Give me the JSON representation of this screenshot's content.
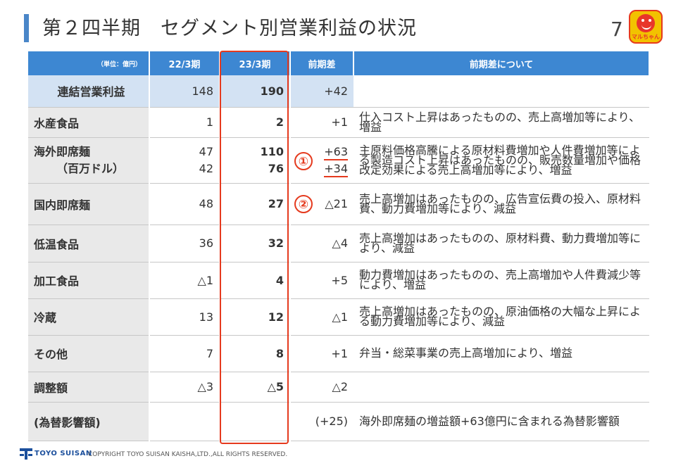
{
  "header": {
    "title": "第２四半期　セグメント別営業利益の状況",
    "page_number": "7",
    "logo_text": "マルちゃん"
  },
  "table": {
    "unit_label": "（単位：億円）",
    "col_prev": "22/3期",
    "col_cur": "23/3期",
    "col_diff": "前期差",
    "col_note": "前期差について",
    "rows": [
      {
        "label": "連結営業利益",
        "prev": "148",
        "cur": "190",
        "diff": "+42",
        "note": ""
      },
      {
        "label": "水産食品",
        "prev": "1",
        "cur": "2",
        "diff": "+1",
        "note": "仕入コスト上昇はあったものの、売上高増加等により、増益"
      },
      {
        "label": "海外即席麺",
        "label2": "（百万ドル）",
        "prev": "47",
        "prev2": "42",
        "cur": "110",
        "cur2": "76",
        "diff": "+63",
        "diff2": "+34",
        "note": "主原料価格高騰による原材料費増加や人件費増加等による製造コスト上昇はあったものの、販売数量増加や価格改定効果による売上高増加等により、増益"
      },
      {
        "label": "国内即席麺",
        "prev": "48",
        "cur": "27",
        "diff": "△21",
        "note": "売上高増加はあったものの、広告宣伝費の投入、原材料費、動力費増加等により、減益"
      },
      {
        "label": "低温食品",
        "prev": "36",
        "cur": "32",
        "diff": "△4",
        "note": "売上高増加はあったものの、原材料費、動力費増加等により、減益"
      },
      {
        "label": "加工食品",
        "prev": "△1",
        "cur": "4",
        "diff": "+5",
        "note": "動力費増加はあったものの、売上高増加や人件費減少等により、増益"
      },
      {
        "label": "冷蔵",
        "prev": "13",
        "cur": "12",
        "diff": "△1",
        "note": "売上高増加はあったものの、原油価格の大幅な上昇による動力費増加等により、減益"
      },
      {
        "label": "その他",
        "prev": "7",
        "cur": "8",
        "diff": "+1",
        "note": "弁当・総菜事業の売上高増加により、増益"
      },
      {
        "label": "調整額",
        "prev": "△3",
        "cur": "△5",
        "diff": "△2",
        "note": ""
      },
      {
        "label": "(為替影響額)",
        "prev": "",
        "cur": "",
        "diff": "(+25)",
        "note": "海外即席麺の増益額+63億円に含まれる為替影響額"
      }
    ]
  },
  "markers": {
    "m1": "①",
    "m2": "②"
  },
  "footer": {
    "brand": "TOYO SUISAN",
    "copyright": "COPYRIGHT TOYO SUISAN KAISHA,LTD.,ALL RIGHTS RESERVED."
  },
  "colors": {
    "accent": "#3d87d2",
    "highlight": "#e53a1e",
    "total_row": "#d3e2f3",
    "label_bg": "#e9e9e9"
  }
}
